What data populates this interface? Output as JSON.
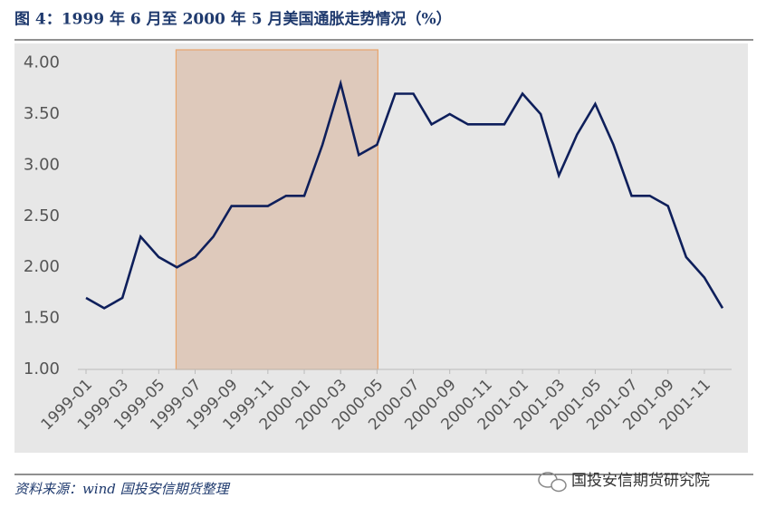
{
  "title": "图 4：1999 年 6 月至 2000 年 5 月美国通胀走势情况（%）",
  "chart_data": {
    "type": "line",
    "categories": [
      "1999-01",
      null,
      "1999-03",
      null,
      "1999-05",
      null,
      "1999-07",
      null,
      "1999-09",
      null,
      "1999-11",
      null,
      "2000-01",
      null,
      "2000-03",
      null,
      "2000-05",
      null,
      "2000-07",
      null,
      "2000-09",
      null,
      "2000-11",
      null,
      "2001-01",
      null,
      "2001-03",
      null,
      "2001-05",
      null,
      "2001-07",
      null,
      "2001-09",
      null,
      "2001-11",
      null
    ],
    "values": [
      1.7,
      1.6,
      1.7,
      2.3,
      2.1,
      2.0,
      2.1,
      2.3,
      2.6,
      2.6,
      2.6,
      2.7,
      2.7,
      3.2,
      3.8,
      3.1,
      3.2,
      3.7,
      3.7,
      3.4,
      3.5,
      3.4,
      3.4,
      3.4,
      3.7,
      3.5,
      2.9,
      3.3,
      3.6,
      3.2,
      2.7,
      2.7,
      2.6,
      2.1,
      1.9,
      1.6
    ],
    "color": "#0e1f5b",
    "ylim": [
      1,
      4.13
    ],
    "yticks": [
      {
        "value": 1,
        "label": "1.00"
      },
      {
        "value": 1.5,
        "label": "1.50"
      },
      {
        "value": 2,
        "label": "2.00"
      },
      {
        "value": 2.5,
        "label": "2.50"
      },
      {
        "value": 3,
        "label": "3.00"
      },
      {
        "value": 3.5,
        "label": "3.50"
      },
      {
        "value": 4,
        "label": "4.00"
      }
    ],
    "highlight": {
      "start_index": 5,
      "end_index": 16,
      "color": "#dcc3b3",
      "border_color": "#e9a46a"
    }
  },
  "source": "资料来源：wind 国投安信期货整理",
  "watermark": "国投安信期货研究院"
}
